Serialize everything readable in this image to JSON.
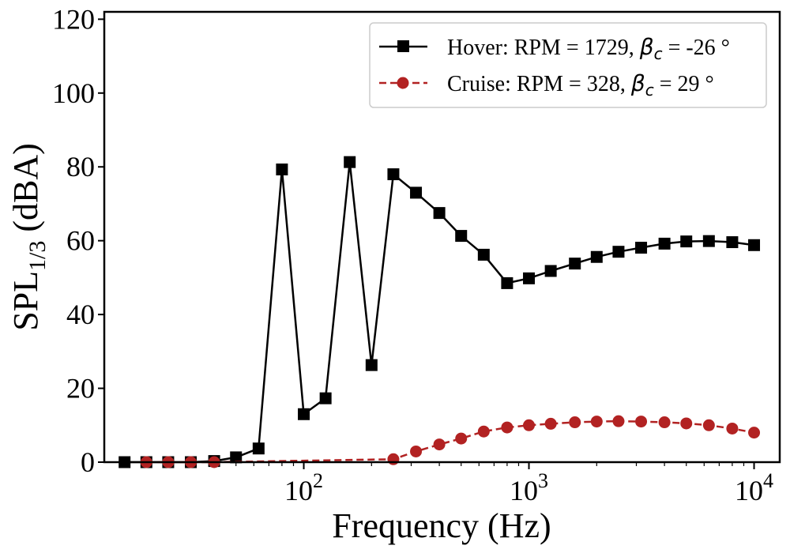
{
  "chart_data": {
    "type": "line",
    "xscale": "log",
    "xlim": [
      13,
      13000
    ],
    "ylim": [
      0,
      122
    ],
    "xlabel": "Frequency (Hz)",
    "ylabel": {
      "main": "SPL",
      "sub": "1/3",
      "unit": " (dBA)"
    },
    "xticks": [
      {
        "value": 100,
        "base": "10",
        "exp": "2"
      },
      {
        "value": 1000,
        "base": "10",
        "exp": "3"
      },
      {
        "value": 10000,
        "base": "10",
        "exp": "4"
      }
    ],
    "yticks": [
      0,
      20,
      40,
      60,
      80,
      100,
      120
    ],
    "legend_position": "top-right",
    "series": [
      {
        "id": "hover",
        "label_prefix": "Hover: RPM = 1729, ",
        "label_greek": "β",
        "label_sub": "c",
        "label_suffix": " = -26 °",
        "color": "#000000",
        "marker": "square",
        "linestyle": "solid",
        "x": [
          16,
          20,
          25,
          31.5,
          40,
          50,
          63,
          80,
          100,
          125,
          160,
          200,
          250,
          315,
          400,
          500,
          630,
          800,
          1000,
          1250,
          1600,
          2000,
          2500,
          3150,
          4000,
          5000,
          6300,
          8000,
          10000
        ],
        "y": [
          0,
          0,
          0,
          0,
          0.3,
          1.3,
          3.7,
          79.3,
          13,
          17.3,
          81.3,
          26.3,
          78,
          73,
          67.5,
          61.3,
          56.2,
          48.5,
          49.8,
          51.8,
          53.8,
          55.6,
          57,
          58.1,
          59.2,
          59.8,
          59.9,
          59.6,
          58.8
        ]
      },
      {
        "id": "cruise",
        "label_prefix": "Cruise: RPM = 328, ",
        "label_greek": "β",
        "label_sub": "c",
        "label_suffix": " = 29 °",
        "color": "#b22222",
        "marker": "circle",
        "linestyle": "dashed",
        "x": [
          20,
          25,
          31.5,
          40,
          250,
          315,
          400,
          500,
          630,
          800,
          1000,
          1250,
          1600,
          2000,
          2500,
          3150,
          4000,
          5000,
          6300,
          8000,
          10000
        ],
        "y": [
          0,
          0,
          0,
          0,
          0.8,
          2.9,
          4.8,
          6.4,
          8.3,
          9.4,
          10,
          10.4,
          10.8,
          11,
          11.1,
          11,
          10.8,
          10.5,
          10,
          9.1,
          8
        ]
      }
    ]
  }
}
